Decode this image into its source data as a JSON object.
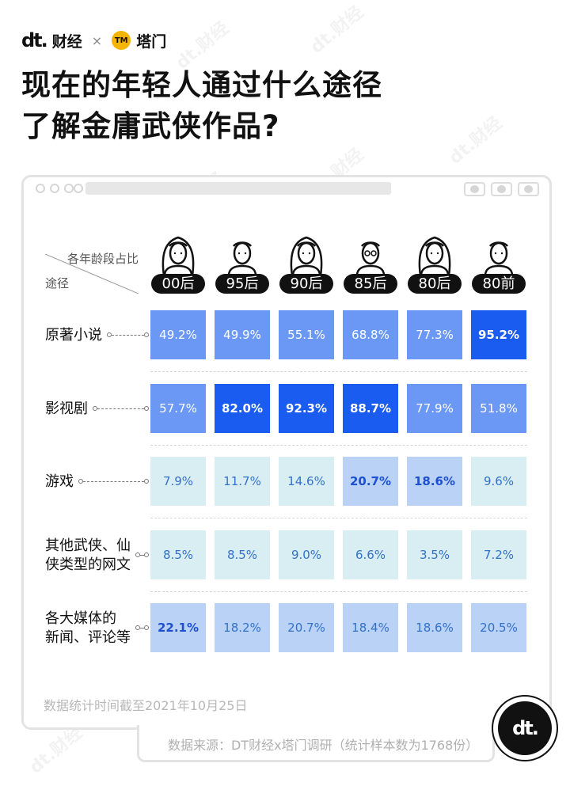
{
  "brand": {
    "dt_logo": "dt.",
    "dt_name": "财经",
    "separator": "×",
    "tm_logo": "TM",
    "tm_name": "塔门"
  },
  "title_lines": [
    "现在的年轻人通过什么途径",
    "了解金庸武侠作品?"
  ],
  "header": {
    "top_label": "各年龄段占比",
    "side_label": "途径"
  },
  "note": "数据统计时间截至2021年10月25日",
  "source": "数据来源：DT财经x塔门调研（统计样本数为1768份）",
  "badge": "dt.",
  "watermark_text": "dt.财经",
  "colors": {
    "dark_blue": "#1a5bf0",
    "mid_blue": "#6b98f5",
    "light_blue": "#b9d2f5",
    "pale_teal": "#d9eef2",
    "text_dark": "#111111",
    "text_blue": "#3371c9"
  },
  "chart_data": {
    "type": "table",
    "title": "现在的年轻人通过什么途径了解金庸武侠作品?",
    "categories": [
      "00后",
      "95后",
      "90后",
      "85后",
      "80后",
      "80前"
    ],
    "rows": [
      {
        "label": "原著小说",
        "values": [
          49.2,
          49.9,
          55.1,
          68.8,
          77.3,
          95.2
        ],
        "labels": [
          "49.2%",
          "49.9%",
          "55.1%",
          "68.8%",
          "77.3%",
          "95.2%"
        ],
        "highlight": [
          false,
          false,
          false,
          false,
          false,
          true
        ]
      },
      {
        "label": "影视剧",
        "values": [
          57.7,
          82.0,
          92.3,
          88.7,
          77.9,
          51.8
        ],
        "labels": [
          "57.7%",
          "82.0%",
          "92.3%",
          "88.7%",
          "77.9%",
          "51.8%"
        ],
        "highlight": [
          false,
          true,
          true,
          true,
          false,
          false
        ]
      },
      {
        "label": "游戏",
        "values": [
          7.9,
          11.7,
          14.6,
          20.7,
          18.6,
          9.6
        ],
        "labels": [
          "7.9%",
          "11.7%",
          "14.6%",
          "20.7%",
          "18.6%",
          "9.6%"
        ],
        "highlight": [
          false,
          false,
          false,
          true,
          true,
          false
        ]
      },
      {
        "label": "其他武侠、仙侠类型的网文",
        "label_lines": [
          "其他武侠、仙",
          "侠类型的网文"
        ],
        "values": [
          8.5,
          8.5,
          9.0,
          6.6,
          3.5,
          7.2
        ],
        "labels": [
          "8.5%",
          "8.5%",
          "9.0%",
          "6.6%",
          "3.5%",
          "7.2%"
        ],
        "highlight": [
          false,
          false,
          false,
          false,
          false,
          false
        ]
      },
      {
        "label": "各大媒体的新闻、评论等",
        "label_lines": [
          "各大媒体的",
          "新闻、评论等"
        ],
        "values": [
          22.1,
          18.2,
          20.7,
          18.4,
          18.6,
          20.5
        ],
        "labels": [
          "22.1%",
          "18.2%",
          "20.7%",
          "18.4%",
          "18.6%",
          "20.5%"
        ],
        "highlight": [
          true,
          false,
          false,
          false,
          false,
          false
        ]
      }
    ]
  }
}
